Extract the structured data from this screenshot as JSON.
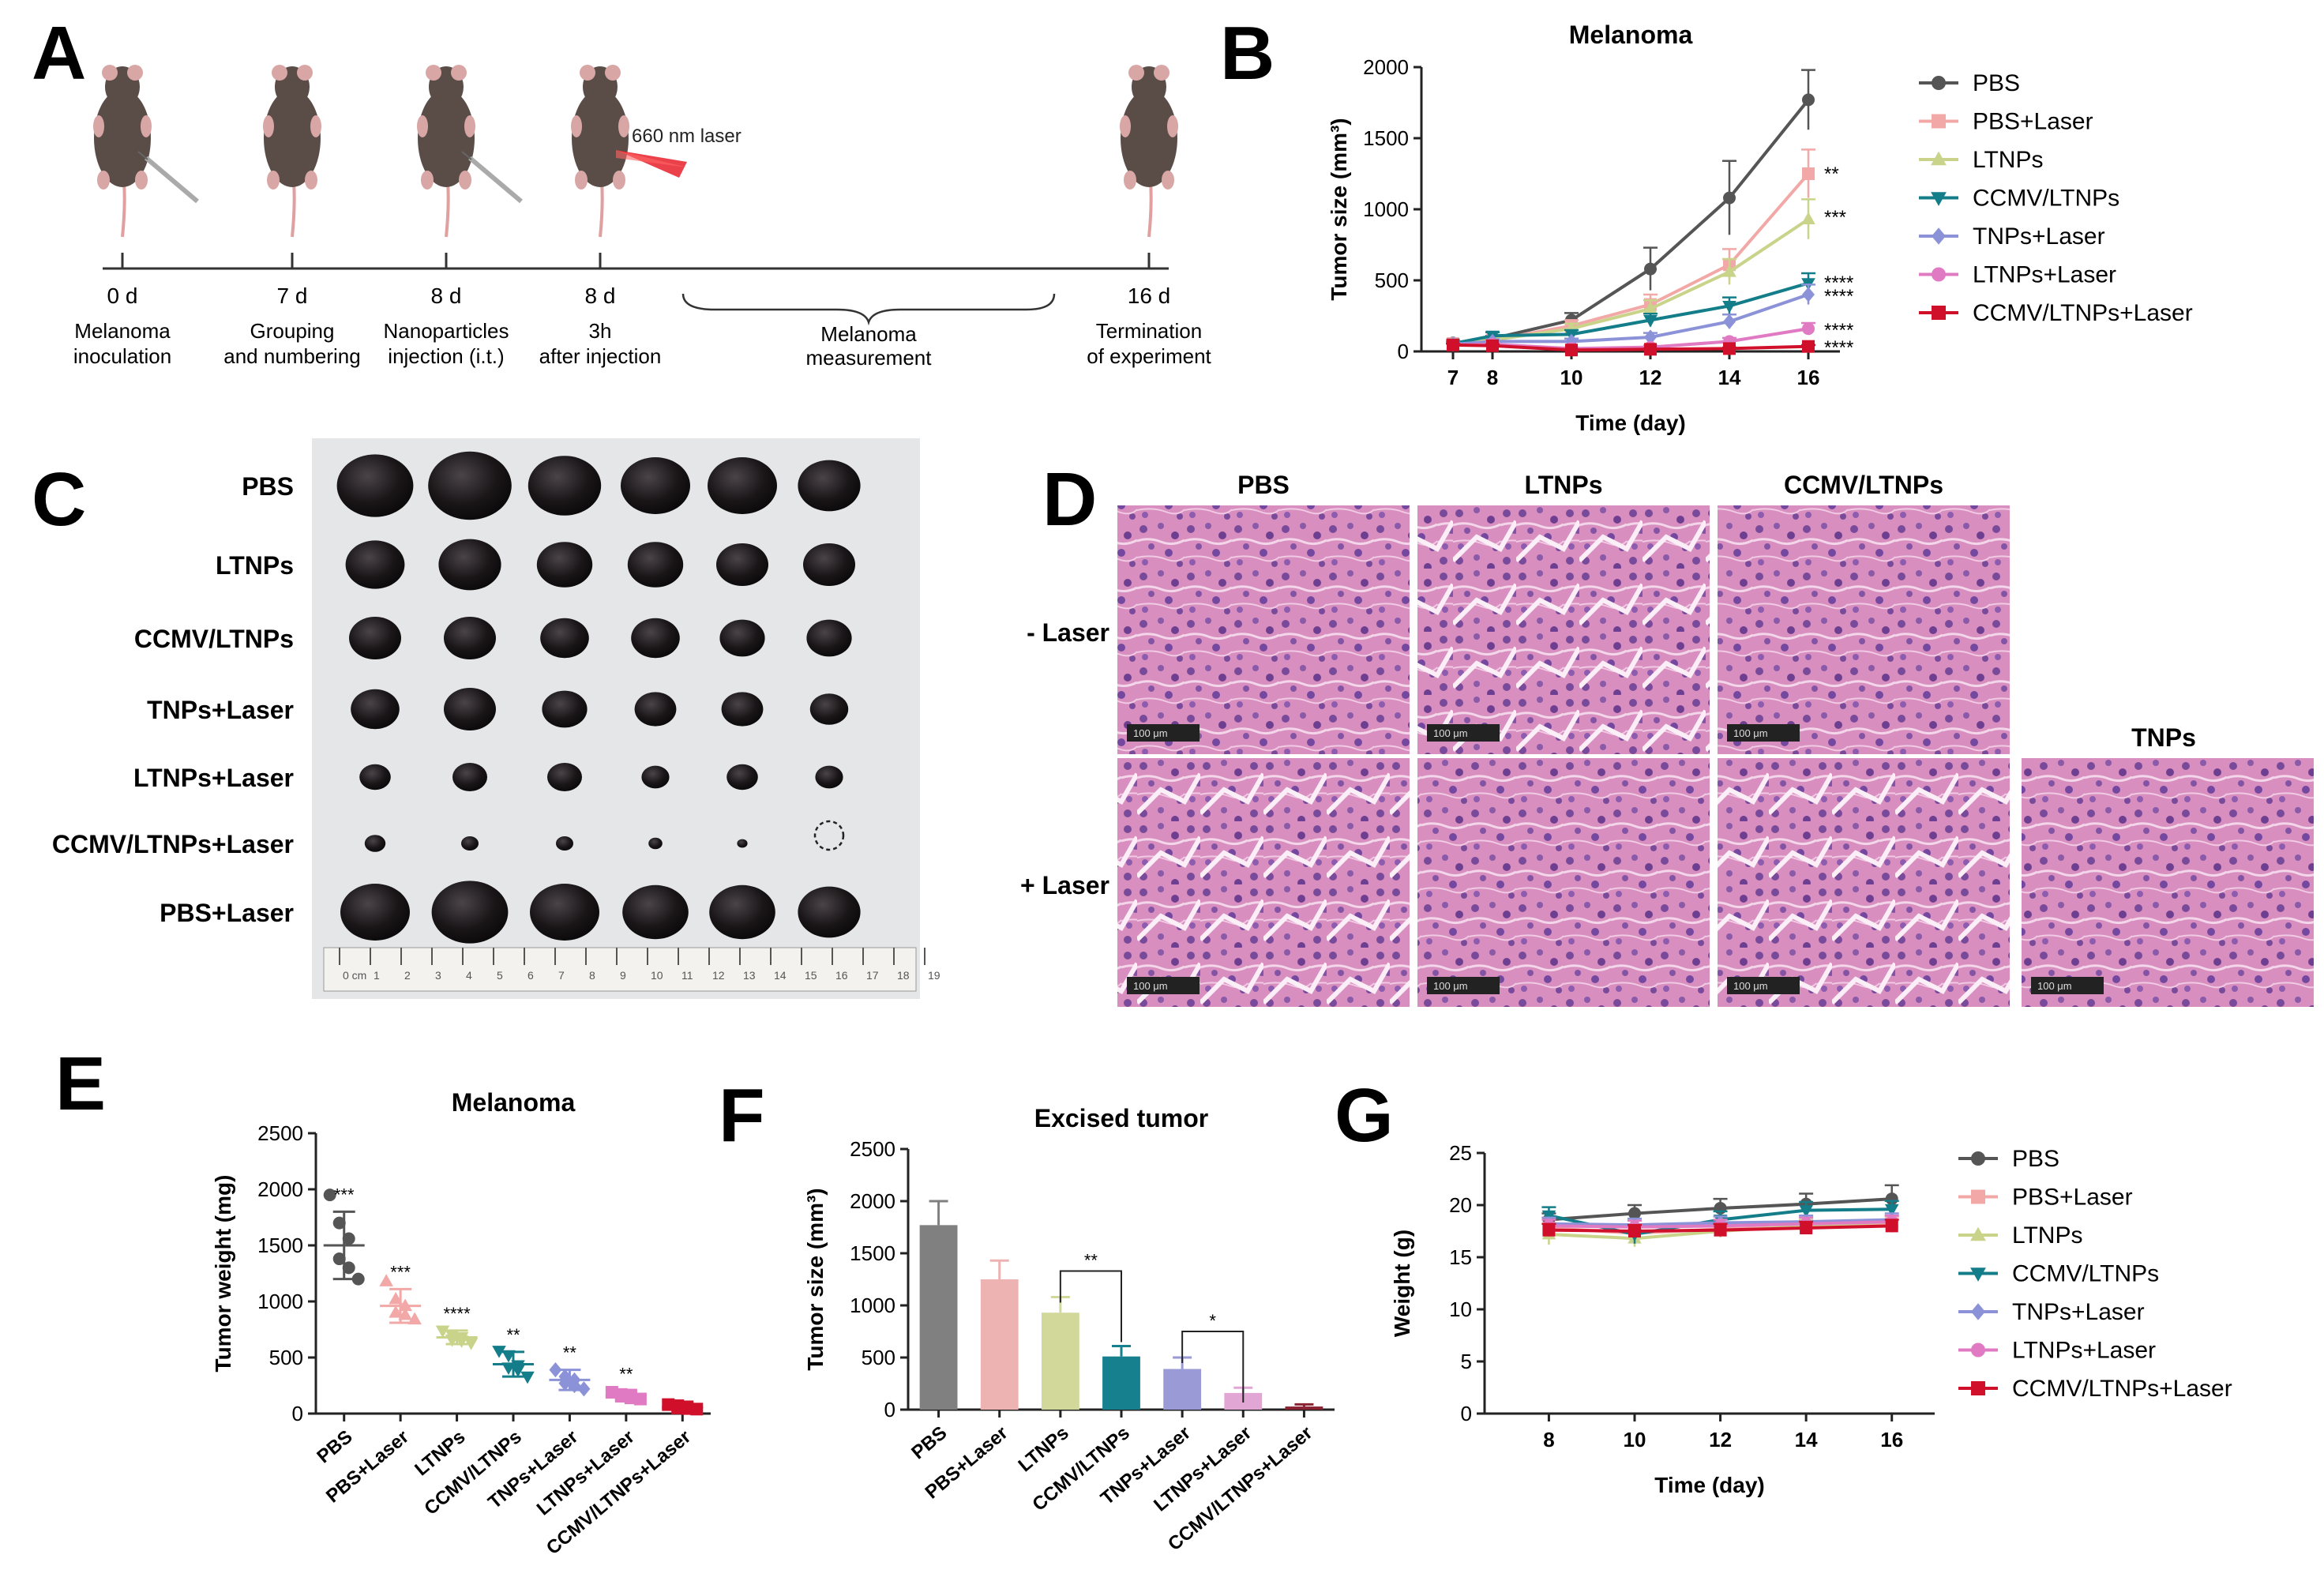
{
  "panels": {
    "A": "A",
    "B": "B",
    "C": "C",
    "D": "D",
    "E": "E",
    "F": "F",
    "G": "G"
  },
  "panel_a": {
    "laser_label": "660 nm laser",
    "days": [
      {
        "day": "0 d",
        "line1": "Melanoma",
        "line2": "inoculation"
      },
      {
        "day": "7 d",
        "line1": "Grouping",
        "line2": "and numbering"
      },
      {
        "day": "8 d",
        "line1": "Nanoparticles",
        "line2": "injection (i.t.)"
      },
      {
        "day": "8 d",
        "line1": "3h",
        "line2": "after injection"
      },
      {
        "day": "16 d",
        "line1": "Termination",
        "line2": "of experiment"
      }
    ],
    "measurement_line1": "Melanoma",
    "measurement_line2": "measurement"
  },
  "panel_c": {
    "rows": [
      "PBS",
      "LTNPs",
      "CCMV/LTNPs",
      "TNPs+Laser",
      "LTNPs+Laser",
      "CCMV/LTNPs+Laser",
      "PBS+Laser"
    ],
    "ruler_labels": [
      "0 cm",
      "1",
      "2",
      "3",
      "4",
      "5",
      "6",
      "7",
      "8",
      "9",
      "10",
      "11",
      "12",
      "13",
      "14",
      "15",
      "16",
      "17",
      "18",
      "19"
    ]
  },
  "panel_d": {
    "col_labels": [
      "PBS",
      "LTNPs",
      "CCMV/LTNPs"
    ],
    "extra_label": "TNPs",
    "row_labels": [
      "- Laser",
      "+ Laser"
    ],
    "scale_bar": "100 μm"
  },
  "colors": {
    "PBS": "#555555",
    "PBS+Laser": "#f2a8a6",
    "LTNPs": "#c9d48a",
    "CCMV/LTNPs": "#137d8a",
    "TNPs+Laser": "#8c92d8",
    "LTNPs+Laser": "#e07ac2",
    "CCMV/LTNPs+Laser": "#d0102a",
    "bar_PBS": "#808080",
    "bar_PBS+Laser": "#edb2b2",
    "bar_LTNPs": "#d2d89a",
    "bar_CCMV/LTNPs": "#17808e",
    "bar_TNPs+Laser": "#9a9ad6",
    "bar_LTNPs+Laser": "#e2a6d4",
    "bar_CCMV/LTNPs+Laser": "#8a2433"
  },
  "chart_data": [
    {
      "id": "B",
      "type": "line",
      "title": "Melanoma",
      "xlabel": "Time (day)",
      "ylabel": "Tumor size (mm³)",
      "x": [
        7,
        8,
        10,
        12,
        14,
        16
      ],
      "ylim": [
        0,
        2000
      ],
      "yticks": [
        0,
        500,
        1000,
        1500,
        2000
      ],
      "legend": "right",
      "series": [
        {
          "name": "PBS",
          "marker": "circle",
          "values": [
            60,
            90,
            220,
            580,
            1080,
            1770
          ],
          "errors": [
            15,
            20,
            50,
            150,
            260,
            210
          ],
          "sig": ""
        },
        {
          "name": "PBS+Laser",
          "marker": "square",
          "values": [
            55,
            80,
            180,
            330,
            610,
            1250
          ],
          "errors": [
            15,
            20,
            40,
            70,
            110,
            170
          ],
          "sig": "**"
        },
        {
          "name": "LTNPs",
          "marker": "triangle",
          "values": [
            55,
            80,
            160,
            300,
            560,
            930
          ],
          "errors": [
            12,
            18,
            35,
            60,
            90,
            140
          ],
          "sig": "***"
        },
        {
          "name": "CCMV/LTNPs",
          "marker": "triangle-down",
          "values": [
            55,
            110,
            120,
            220,
            320,
            480
          ],
          "errors": [
            12,
            25,
            30,
            45,
            60,
            70
          ],
          "sig": "****"
        },
        {
          "name": "TNPs+Laser",
          "marker": "diamond",
          "values": [
            50,
            70,
            70,
            100,
            210,
            400
          ],
          "errors": [
            12,
            15,
            20,
            30,
            50,
            70
          ],
          "sig": "****"
        },
        {
          "name": "LTNPs+Laser",
          "marker": "circle",
          "values": [
            45,
            50,
            20,
            30,
            70,
            160
          ],
          "errors": [
            10,
            12,
            8,
            12,
            25,
            40
          ],
          "sig": "****"
        },
        {
          "name": "CCMV/LTNPs+Laser",
          "marker": "square",
          "values": [
            45,
            40,
            10,
            15,
            20,
            35
          ],
          "errors": [
            10,
            10,
            5,
            5,
            8,
            10
          ],
          "sig": "****"
        }
      ]
    },
    {
      "id": "E",
      "type": "scatter",
      "title": "Melanoma",
      "xlabel": "",
      "ylabel": "Tumor weight (mg)",
      "ylim": [
        0,
        2500
      ],
      "yticks": [
        0,
        500,
        1000,
        1500,
        2000,
        2500
      ],
      "categories": [
        "PBS",
        "PBS+Laser",
        "LTNPs",
        "CCMV/LTNPs",
        "TNPs+Laser",
        "LTNPs+Laser",
        "CCMV/LTNPs+Laser"
      ],
      "means": [
        1500,
        960,
        680,
        440,
        300,
        160,
        55
      ],
      "sds": [
        300,
        150,
        60,
        110,
        90,
        40,
        20
      ],
      "points": [
        [
          1950,
          1700,
          1560,
          1380,
          1300,
          1200
        ],
        [
          1180,
          1020,
          960,
          900,
          880,
          840
        ],
        [
          740,
          700,
          680,
          660,
          650,
          630
        ],
        [
          560,
          520,
          430,
          410,
          390,
          330
        ],
        [
          390,
          330,
          300,
          270,
          250,
          220
        ],
        [
          190,
          170,
          165,
          155,
          140,
          130
        ],
        [
          80,
          70,
          60,
          50,
          45,
          40
        ]
      ],
      "sig": [
        "***",
        "***",
        "****",
        "**",
        "**",
        "**",
        ""
      ]
    },
    {
      "id": "F",
      "type": "bar",
      "title": "Excised tumor",
      "xlabel": "",
      "ylabel": "Tumor size (mm³)",
      "ylim": [
        0,
        2500
      ],
      "yticks": [
        0,
        500,
        1000,
        1500,
        2000,
        2500
      ],
      "categories": [
        "PBS",
        "PBS+Laser",
        "LTNPs",
        "CCMV/LTNPs",
        "TNPs+Laser",
        "LTNPs+Laser",
        "CCMV/LTNPs+Laser"
      ],
      "values": [
        1770,
        1250,
        930,
        510,
        390,
        160,
        30
      ],
      "errors": [
        230,
        180,
        150,
        100,
        110,
        50,
        20
      ],
      "brackets": [
        {
          "from": 2,
          "to": 3,
          "label": "**"
        },
        {
          "from": 4,
          "to": 5,
          "label": "*"
        }
      ]
    },
    {
      "id": "G",
      "type": "line",
      "title": "",
      "xlabel": "Time (day)",
      "ylabel": "Weight (g)",
      "x": [
        8,
        10,
        12,
        14,
        16
      ],
      "ylim": [
        0,
        25
      ],
      "yticks": [
        0,
        5,
        10,
        15,
        20,
        25
      ],
      "legend": "right",
      "series": [
        {
          "name": "PBS",
          "marker": "circle",
          "values": [
            18.6,
            19.2,
            19.7,
            20.1,
            20.6
          ],
          "errors": [
            0.6,
            0.8,
            0.9,
            1.0,
            1.3
          ]
        },
        {
          "name": "PBS+Laser",
          "marker": "square",
          "values": [
            17.8,
            17.3,
            17.7,
            17.9,
            18.2
          ],
          "errors": [
            1.0,
            0.8,
            0.6,
            0.6,
            0.7
          ]
        },
        {
          "name": "LTNPs",
          "marker": "triangle",
          "values": [
            17.2,
            16.8,
            17.5,
            18.0,
            18.4
          ],
          "errors": [
            1.0,
            0.8,
            0.6,
            0.6,
            0.6
          ]
        },
        {
          "name": "CCMV/LTNPs",
          "marker": "triangle-down",
          "values": [
            19.0,
            17.2,
            18.6,
            19.5,
            19.6
          ],
          "errors": [
            0.8,
            0.9,
            0.8,
            0.8,
            0.8
          ]
        },
        {
          "name": "TNPs+Laser",
          "marker": "diamond",
          "values": [
            18.2,
            18.1,
            18.3,
            18.4,
            18.6
          ],
          "errors": [
            0.6,
            0.6,
            0.6,
            0.6,
            0.6
          ]
        },
        {
          "name": "LTNPs+Laser",
          "marker": "circle",
          "values": [
            18.0,
            17.9,
            18.0,
            18.2,
            18.4
          ],
          "errors": [
            0.6,
            0.6,
            0.6,
            0.6,
            0.6
          ]
        },
        {
          "name": "CCMV/LTNPs+Laser",
          "marker": "square",
          "values": [
            17.6,
            17.5,
            17.6,
            17.8,
            18.0
          ],
          "errors": [
            0.6,
            0.6,
            0.6,
            0.6,
            0.6
          ]
        }
      ]
    }
  ]
}
